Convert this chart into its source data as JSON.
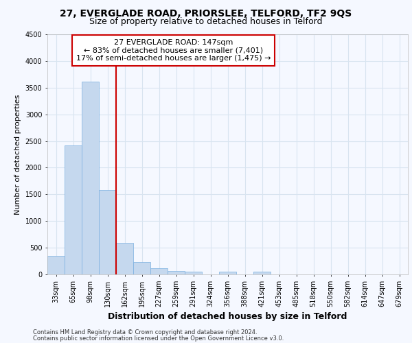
{
  "title1": "27, EVERGLADE ROAD, PRIORSLEE, TELFORD, TF2 9QS",
  "title2": "Size of property relative to detached houses in Telford",
  "xlabel": "Distribution of detached houses by size in Telford",
  "ylabel": "Number of detached properties",
  "categories": [
    "33sqm",
    "65sqm",
    "98sqm",
    "130sqm",
    "162sqm",
    "195sqm",
    "227sqm",
    "259sqm",
    "291sqm",
    "324sqm",
    "356sqm",
    "388sqm",
    "421sqm",
    "453sqm",
    "485sqm",
    "518sqm",
    "550sqm",
    "582sqm",
    "614sqm",
    "647sqm",
    "679sqm"
  ],
  "values": [
    350,
    2420,
    3610,
    1580,
    590,
    230,
    110,
    70,
    55,
    0,
    50,
    0,
    55,
    0,
    0,
    0,
    0,
    0,
    0,
    0,
    0
  ],
  "bar_color": "#c5d8ee",
  "bar_edgecolor": "#7aafe0",
  "vline_x": 3.5,
  "vline_color": "#cc0000",
  "annotation_text": "27 EVERGLADE ROAD: 147sqm\n← 83% of detached houses are smaller (7,401)\n17% of semi-detached houses are larger (1,475) →",
  "annotation_box_color": "#ffffff",
  "annotation_box_edgecolor": "#cc0000",
  "ylim": [
    0,
    4500
  ],
  "yticks": [
    0,
    500,
    1000,
    1500,
    2000,
    2500,
    3000,
    3500,
    4000,
    4500
  ],
  "footer1": "Contains HM Land Registry data © Crown copyright and database right 2024.",
  "footer2": "Contains public sector information licensed under the Open Government Licence v3.0.",
  "bg_color": "#f5f8ff",
  "plot_bg_color": "#f5f8ff",
  "title1_fontsize": 10,
  "title2_fontsize": 9,
  "xlabel_fontsize": 9,
  "ylabel_fontsize": 8,
  "grid_color": "#d8e4f0",
  "tick_fontsize": 7,
  "footer_fontsize": 6,
  "ann_fontsize": 8
}
